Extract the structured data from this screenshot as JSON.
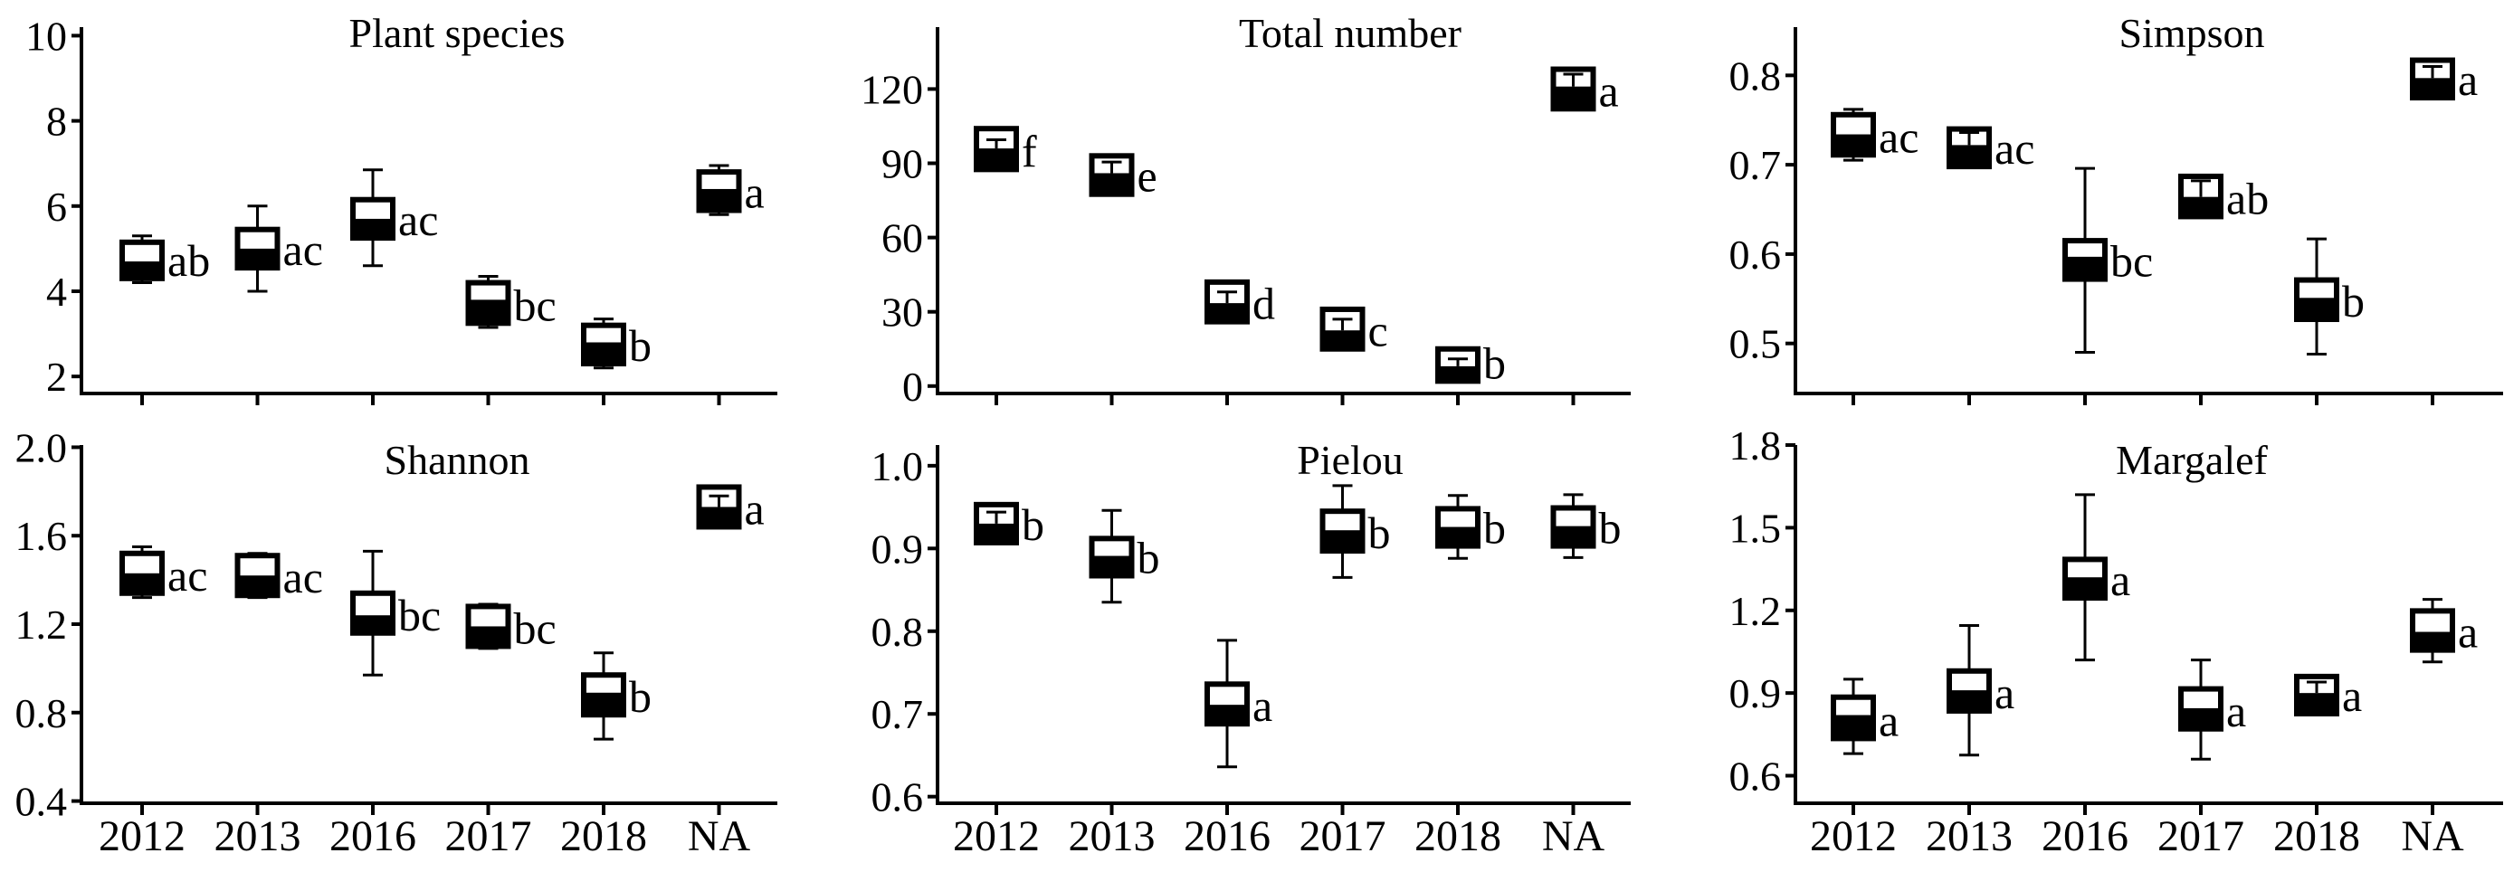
{
  "figure": {
    "background_color": "#ffffff",
    "ink_color": "#000000",
    "box_fill_upper": "#ffffff",
    "box_fill_lower": "#000000",
    "grid": "off",
    "legend": "none"
  },
  "categories": [
    "2012",
    "2013",
    "2016",
    "2017",
    "2018",
    "NA"
  ],
  "chart_data": [
    {
      "type": "box",
      "title": "Plant species",
      "xlabel": "",
      "ylabel": "",
      "ylim": [
        1.6,
        10.2
      ],
      "yticks": [
        "2",
        "4",
        "6",
        "8",
        "10"
      ],
      "show_x_tick_labels": false,
      "boxes": [
        {
          "category": "2012",
          "low": 4.2,
          "q1": 4.3,
          "median": 4.7,
          "q3": 5.15,
          "high": 5.3,
          "label": "ab"
        },
        {
          "category": "2013",
          "low": 4.0,
          "q1": 4.55,
          "median": 5.0,
          "q3": 5.45,
          "high": 6.0,
          "label": "ac"
        },
        {
          "category": "2016",
          "low": 4.6,
          "q1": 5.25,
          "median": 5.7,
          "q3": 6.15,
          "high": 6.85,
          "label": "ac"
        },
        {
          "category": "2017",
          "low": 3.15,
          "q1": 3.25,
          "median": 3.8,
          "q3": 4.2,
          "high": 4.35,
          "label": "bc"
        },
        {
          "category": "2018",
          "low": 2.2,
          "q1": 2.3,
          "median": 2.8,
          "q3": 3.2,
          "high": 3.35,
          "label": "b"
        },
        {
          "category": "NA",
          "low": 5.8,
          "q1": 5.9,
          "median": 6.4,
          "q3": 6.8,
          "high": 6.95,
          "label": "a"
        }
      ]
    },
    {
      "type": "box",
      "title": "Total number",
      "xlabel": "",
      "ylabel": "",
      "ylim": [
        -3,
        145
      ],
      "yticks": [
        "0",
        "30",
        "60",
        "90",
        "120"
      ],
      "show_x_tick_labels": false,
      "boxes": [
        {
          "category": "2012",
          "low": 87.5,
          "q1": 87.5,
          "median": 96,
          "q3": 104,
          "high": 99.5,
          "label": "f"
        },
        {
          "category": "2013",
          "low": 77.5,
          "q1": 77.5,
          "median": 86,
          "q3": 93,
          "high": 90.5,
          "label": "e"
        },
        {
          "category": "2016",
          "low": 26,
          "q1": 26,
          "median": 33.5,
          "q3": 42,
          "high": 38,
          "label": "d"
        },
        {
          "category": "2017",
          "low": 15,
          "q1": 15,
          "median": 22.5,
          "q3": 31,
          "high": 27,
          "label": "c"
        },
        {
          "category": "2018",
          "low": 2,
          "q1": 2,
          "median": 8,
          "q3": 15,
          "high": 11,
          "label": "b"
        },
        {
          "category": "NA",
          "low": 112,
          "q1": 112,
          "median": 121,
          "q3": 128,
          "high": 126,
          "label": "a"
        }
      ]
    },
    {
      "type": "box",
      "title": "Simpson",
      "xlabel": "",
      "ylabel": "",
      "ylim": [
        0.444,
        0.854
      ],
      "yticks": [
        "0.5",
        "0.6",
        "0.7",
        "0.8"
      ],
      "show_x_tick_labels": false,
      "boxes": [
        {
          "category": "2012",
          "low": 0.705,
          "q1": 0.711,
          "median": 0.734,
          "q3": 0.756,
          "high": 0.762,
          "label": "ac"
        },
        {
          "category": "2013",
          "low": 0.698,
          "q1": 0.698,
          "median": 0.722,
          "q3": 0.74,
          "high": 0.736,
          "label": "ac"
        },
        {
          "category": "2016",
          "low": 0.49,
          "q1": 0.572,
          "median": 0.597,
          "q3": 0.615,
          "high": 0.696,
          "label": "bc"
        },
        {
          "category": "2017",
          "low": 0.642,
          "q1": 0.642,
          "median": 0.664,
          "q3": 0.687,
          "high": 0.682,
          "label": "ab"
        },
        {
          "category": "2018",
          "low": 0.488,
          "q1": 0.527,
          "median": 0.551,
          "q3": 0.571,
          "high": 0.617,
          "label": "b"
        },
        {
          "category": "NA",
          "low": 0.775,
          "q1": 0.775,
          "median": 0.797,
          "q3": 0.817,
          "high": 0.81,
          "label": "a"
        }
      ]
    },
    {
      "type": "box",
      "title": "Shannon",
      "xlabel": "",
      "ylabel": "",
      "ylim": [
        0.39,
        2.01
      ],
      "yticks": [
        "0.4",
        "0.8",
        "1.2",
        "1.6",
        "2.0"
      ],
      "show_x_tick_labels": true,
      "boxes": [
        {
          "category": "2012",
          "low": 1.32,
          "q1": 1.34,
          "median": 1.43,
          "q3": 1.52,
          "high": 1.55,
          "label": "ac"
        },
        {
          "category": "2013",
          "low": 1.32,
          "q1": 1.33,
          "median": 1.42,
          "q3": 1.51,
          "high": 1.52,
          "label": "ac"
        },
        {
          "category": "2016",
          "low": 0.97,
          "q1": 1.16,
          "median": 1.24,
          "q3": 1.34,
          "high": 1.53,
          "label": "bc"
        },
        {
          "category": "2017",
          "low": 1.09,
          "q1": 1.1,
          "median": 1.19,
          "q3": 1.28,
          "high": 1.29,
          "label": "bc"
        },
        {
          "category": "2018",
          "low": 0.68,
          "q1": 0.79,
          "median": 0.89,
          "q3": 0.97,
          "high": 1.07,
          "label": "b"
        },
        {
          "category": "NA",
          "low": 1.64,
          "q1": 1.64,
          "median": 1.73,
          "q3": 1.82,
          "high": 1.78,
          "label": "a"
        }
      ]
    },
    {
      "type": "box",
      "title": "Pielou",
      "xlabel": "",
      "ylabel": "",
      "ylim": [
        0.592,
        1.025
      ],
      "yticks": [
        "0.6",
        "0.7",
        "0.8",
        "0.9",
        "1.0"
      ],
      "show_x_tick_labels": true,
      "boxes": [
        {
          "category": "2012",
          "low": 0.907,
          "q1": 0.907,
          "median": 0.93,
          "q3": 0.953,
          "high": 0.944,
          "label": "b"
        },
        {
          "category": "2013",
          "low": 0.835,
          "q1": 0.867,
          "median": 0.891,
          "q3": 0.912,
          "high": 0.946,
          "label": "b"
        },
        {
          "category": "2016",
          "low": 0.636,
          "q1": 0.688,
          "median": 0.711,
          "q3": 0.736,
          "high": 0.789,
          "label": "a"
        },
        {
          "category": "2017",
          "low": 0.865,
          "q1": 0.897,
          "median": 0.922,
          "q3": 0.945,
          "high": 0.976,
          "label": "b"
        },
        {
          "category": "2018",
          "low": 0.888,
          "q1": 0.903,
          "median": 0.926,
          "q3": 0.948,
          "high": 0.964,
          "label": "b"
        },
        {
          "category": "NA",
          "low": 0.889,
          "q1": 0.903,
          "median": 0.927,
          "q3": 0.949,
          "high": 0.965,
          "label": "b"
        }
      ]
    },
    {
      "type": "box",
      "title": "Margalef",
      "xlabel": "",
      "ylabel": "",
      "ylim": [
        0.5,
        1.8
      ],
      "yticks": [
        "0.6",
        "0.9",
        "1.2",
        "1.5",
        "1.8"
      ],
      "show_x_tick_labels": true,
      "boxes": [
        {
          "category": "2012",
          "low": 0.68,
          "q1": 0.735,
          "median": 0.82,
          "q3": 0.885,
          "high": 0.95,
          "label": "a"
        },
        {
          "category": "2013",
          "low": 0.675,
          "q1": 0.835,
          "median": 0.91,
          "q3": 0.98,
          "high": 1.145,
          "label": "a"
        },
        {
          "category": "2016",
          "low": 1.02,
          "q1": 1.245,
          "median": 1.32,
          "q3": 1.385,
          "high": 1.62,
          "label": "a"
        },
        {
          "category": "2017",
          "low": 0.66,
          "q1": 0.77,
          "median": 0.845,
          "q3": 0.915,
          "high": 1.02,
          "label": "a"
        },
        {
          "category": "2018",
          "low": 0.825,
          "q1": 0.825,
          "median": 0.9,
          "q3": 0.96,
          "high": 0.94,
          "label": "a"
        },
        {
          "category": "NA",
          "low": 1.013,
          "q1": 1.056,
          "median": 1.122,
          "q3": 1.198,
          "high": 1.24,
          "label": "a"
        }
      ]
    }
  ]
}
